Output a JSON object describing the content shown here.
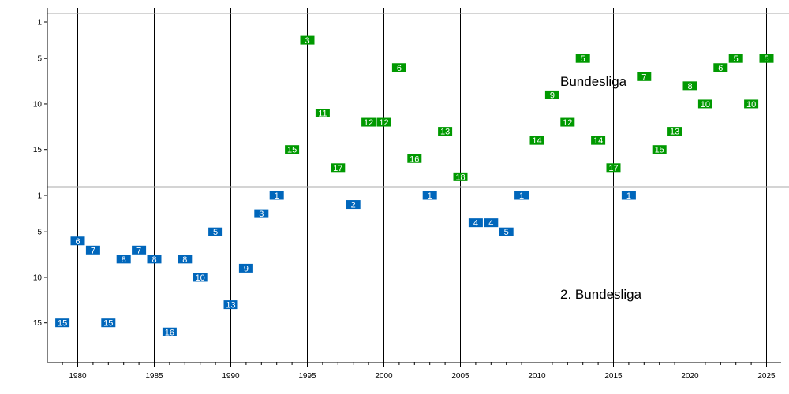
{
  "chart_data": {
    "type": "scatter",
    "title": "",
    "xlabel": "",
    "ylabel": "",
    "xlim": [
      1978,
      2026
    ],
    "x_ticks": [
      1980,
      1985,
      1990,
      1995,
      2000,
      2005,
      2010,
      2015,
      2020,
      2025
    ],
    "y_ticks": [
      1,
      5,
      10,
      15
    ],
    "ylim": [
      0,
      19
    ],
    "grid": "vertical lines every 5 years",
    "colors": {
      "bundesliga": "#009900",
      "zweite": "#0066bb",
      "separator": "#aaaaaa"
    },
    "series": [
      {
        "name": "Bundesliga",
        "points": [
          {
            "x": 1994,
            "y": 15
          },
          {
            "x": 1995,
            "y": 3
          },
          {
            "x": 1996,
            "y": 11
          },
          {
            "x": 1997,
            "y": 17
          },
          {
            "x": 1999,
            "y": 12
          },
          {
            "x": 2000,
            "y": 12
          },
          {
            "x": 2001,
            "y": 6
          },
          {
            "x": 2002,
            "y": 16
          },
          {
            "x": 2004,
            "y": 13
          },
          {
            "x": 2005,
            "y": 18
          },
          {
            "x": 2010,
            "y": 14
          },
          {
            "x": 2011,
            "y": 9
          },
          {
            "x": 2012,
            "y": 12
          },
          {
            "x": 2013,
            "y": 5
          },
          {
            "x": 2014,
            "y": 14
          },
          {
            "x": 2015,
            "y": 17
          },
          {
            "x": 2017,
            "y": 7
          },
          {
            "x": 2018,
            "y": 15
          },
          {
            "x": 2019,
            "y": 13
          },
          {
            "x": 2020,
            "y": 8
          },
          {
            "x": 2021,
            "y": 10
          },
          {
            "x": 2022,
            "y": 6
          },
          {
            "x": 2023,
            "y": 5
          },
          {
            "x": 2024,
            "y": 10
          },
          {
            "x": 2025,
            "y": 5
          }
        ]
      },
      {
        "name": "2. Bundesliga",
        "points": [
          {
            "x": 1979,
            "y": 15
          },
          {
            "x": 1980,
            "y": 6
          },
          {
            "x": 1981,
            "y": 7
          },
          {
            "x": 1982,
            "y": 15
          },
          {
            "x": 1983,
            "y": 8
          },
          {
            "x": 1984,
            "y": 7
          },
          {
            "x": 1985,
            "y": 8
          },
          {
            "x": 1986,
            "y": 16
          },
          {
            "x": 1987,
            "y": 8
          },
          {
            "x": 1988,
            "y": 10
          },
          {
            "x": 1989,
            "y": 5
          },
          {
            "x": 1990,
            "y": 13
          },
          {
            "x": 1991,
            "y": 9
          },
          {
            "x": 1992,
            "y": 3
          },
          {
            "x": 1993,
            "y": 1
          },
          {
            "x": 1998,
            "y": 2
          },
          {
            "x": 2003,
            "y": 1
          },
          {
            "x": 2006,
            "y": 4
          },
          {
            "x": 2007,
            "y": 4
          },
          {
            "x": 2008,
            "y": 5
          },
          {
            "x": 2009,
            "y": 1
          },
          {
            "x": 2016,
            "y": 1
          }
        ]
      }
    ]
  }
}
